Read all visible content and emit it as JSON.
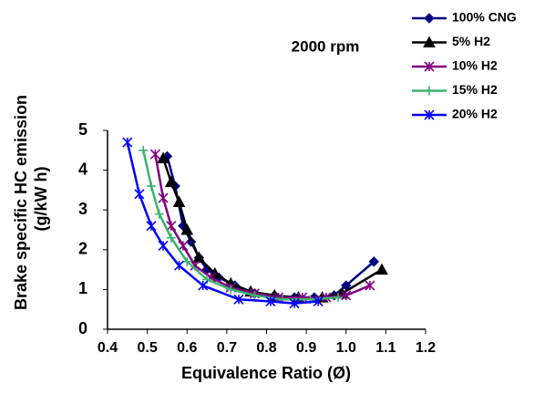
{
  "chart_data": {
    "type": "line",
    "annotation": "2000 rpm",
    "xlabel": "Equivalence Ratio (Ø)",
    "ylabel": [
      "Brake specific HC emission",
      "(g/kW h)"
    ],
    "xlim": [
      0.4,
      1.2
    ],
    "xticks": [
      0.4,
      0.5,
      0.6,
      0.7,
      0.8,
      0.9,
      {
        "value": 1,
        "label": "1.0"
      },
      1.1,
      1.2
    ],
    "ylim": [
      0,
      5
    ],
    "yticks": [
      0,
      1,
      2,
      3,
      4,
      5
    ],
    "grid": false,
    "legend": "top-right",
    "series": [
      {
        "name": "100% CNG",
        "color": "#000080",
        "marker": "diamond",
        "x": [
          0.55,
          0.57,
          0.59,
          0.61,
          0.63,
          0.65,
          0.68,
          0.72,
          0.77,
          0.82,
          0.87,
          0.92,
          0.97,
          1.0,
          1.07
        ],
        "values": [
          4.35,
          3.6,
          2.6,
          2.2,
          1.8,
          1.5,
          1.3,
          1.1,
          0.9,
          0.85,
          0.8,
          0.8,
          0.85,
          1.1,
          1.7
        ]
      },
      {
        "name": "5% H2",
        "color": "#000000",
        "marker": "triangle",
        "x": [
          0.54,
          0.56,
          0.58,
          0.6,
          0.63,
          0.67,
          0.71,
          0.76,
          0.82,
          0.88,
          0.94,
          0.99,
          1.09
        ],
        "values": [
          4.3,
          3.7,
          3.2,
          2.5,
          1.8,
          1.4,
          1.15,
          0.95,
          0.85,
          0.8,
          0.8,
          0.9,
          1.5
        ]
      },
      {
        "name": "10% H2",
        "color": "#800080",
        "marker": "asterisk",
        "x": [
          0.52,
          0.54,
          0.56,
          0.59,
          0.62,
          0.66,
          0.71,
          0.77,
          0.83,
          0.89,
          0.95,
          1.0,
          1.06
        ],
        "values": [
          4.4,
          3.3,
          2.6,
          2.1,
          1.6,
          1.3,
          1.05,
          0.9,
          0.8,
          0.8,
          0.8,
          0.85,
          1.1
        ]
      },
      {
        "name": "15% H2",
        "color": "#3cb371",
        "marker": "plus",
        "x": [
          0.49,
          0.51,
          0.53,
          0.56,
          0.6,
          0.65,
          0.71,
          0.77,
          0.84,
          0.91,
          0.98
        ],
        "values": [
          4.5,
          3.6,
          2.9,
          2.3,
          1.7,
          1.25,
          1.0,
          0.85,
          0.75,
          0.75,
          0.8
        ]
      },
      {
        "name": "20% H2",
        "color": "#0000ff",
        "marker": "asterisk",
        "x": [
          0.45,
          0.48,
          0.51,
          0.54,
          0.58,
          0.64,
          0.73,
          0.81,
          0.87,
          0.93
        ],
        "values": [
          4.7,
          3.4,
          2.6,
          2.1,
          1.6,
          1.1,
          0.75,
          0.7,
          0.65,
          0.7
        ]
      }
    ]
  }
}
